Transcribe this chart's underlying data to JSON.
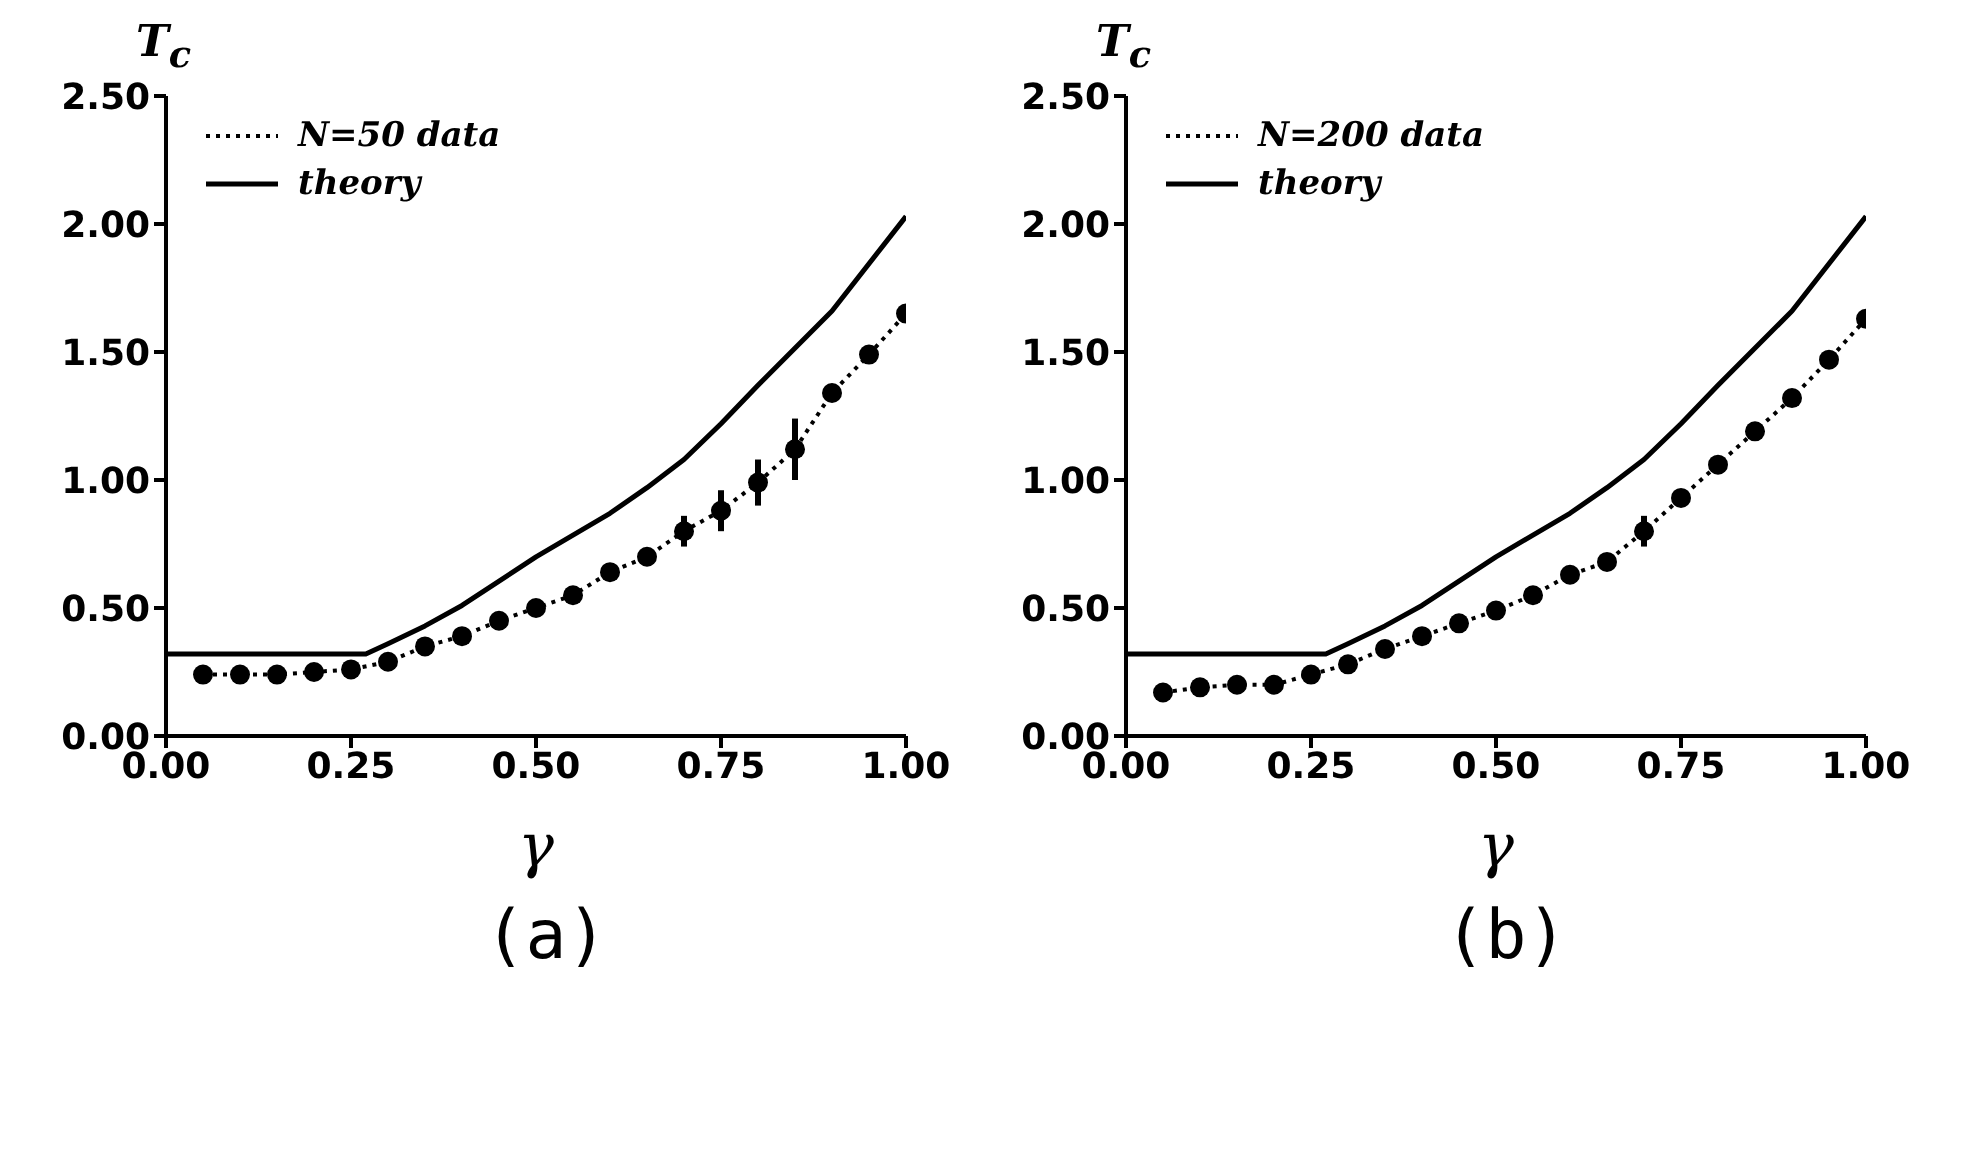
{
  "chart_data": [
    {
      "type": "line",
      "xlabel": "γ",
      "ylabel": "T$_{c}$",
      "annotations": [
        "(a)"
      ],
      "legend": "top left",
      "xlim": [
        0,
        1
      ],
      "ylim": [
        0,
        2.5
      ],
      "xticks": [
        {
          "value": 0,
          "label": "0.00"
        },
        {
          "value": 0.25,
          "label": "0.25"
        },
        {
          "value": 0.5,
          "label": "0.50"
        },
        {
          "value": 0.75,
          "label": "0.75"
        },
        {
          "value": 1,
          "label": "1.00"
        }
      ],
      "yticks": [
        {
          "value": 0,
          "label": "0.00"
        },
        {
          "value": 0.5,
          "label": "0.50"
        },
        {
          "value": 1,
          "label": "1.00"
        },
        {
          "value": 1.5,
          "label": "1.50"
        },
        {
          "value": 2,
          "label": "2.00"
        },
        {
          "value": 2.5,
          "label": "2.50"
        }
      ],
      "series": [
        {
          "name": "N=50 data",
          "color": "#000000",
          "marker": "circle",
          "line_style": "dotted",
          "x": [
            0.05,
            0.1,
            0.15,
            0.2,
            0.25,
            0.3,
            0.35,
            0.4,
            0.45,
            0.5,
            0.55,
            0.6,
            0.65,
            0.7,
            0.75,
            0.8,
            0.85,
            0.9,
            0.95,
            1.0
          ],
          "values": [
            0.24,
            0.24,
            0.24,
            0.25,
            0.26,
            0.29,
            0.35,
            0.39,
            0.45,
            0.5,
            0.55,
            0.64,
            0.7,
            0.8,
            0.88,
            0.99,
            1.12,
            1.34,
            1.49,
            1.65
          ],
          "errors": [
            null,
            null,
            null,
            null,
            null,
            null,
            null,
            null,
            null,
            null,
            null,
            null,
            null,
            0.06,
            0.08,
            0.09,
            0.12,
            null,
            null,
            null
          ]
        },
        {
          "name": "theory",
          "color": "#000000",
          "marker": "none",
          "line_style": "solid",
          "x": [
            0,
            0.27,
            0.3,
            0.35,
            0.4,
            0.5,
            0.6,
            0.65,
            0.7,
            0.75,
            0.8,
            0.9,
            1.0
          ],
          "values": [
            0.32,
            0.32,
            0.36,
            0.43,
            0.51,
            0.7,
            0.87,
            0.97,
            1.08,
            1.22,
            1.37,
            1.66,
            2.03
          ]
        }
      ]
    },
    {
      "type": "line",
      "xlabel": "γ",
      "ylabel": "T$_{c}$",
      "annotations": [
        "(b)"
      ],
      "legend": "top left",
      "xlim": [
        0,
        1
      ],
      "ylim": [
        0,
        2.5
      ],
      "xticks": [
        {
          "value": 0,
          "label": "0.00"
        },
        {
          "value": 0.25,
          "label": "0.25"
        },
        {
          "value": 0.5,
          "label": "0.50"
        },
        {
          "value": 0.75,
          "label": "0.75"
        },
        {
          "value": 1,
          "label": "1.00"
        }
      ],
      "yticks": [
        {
          "value": 0,
          "label": "0.00"
        },
        {
          "value": 0.5,
          "label": "0.50"
        },
        {
          "value": 1,
          "label": "1.00"
        },
        {
          "value": 1.5,
          "label": "1.50"
        },
        {
          "value": 2,
          "label": "2.00"
        },
        {
          "value": 2.5,
          "label": "2.50"
        }
      ],
      "series": [
        {
          "name": "N=200 data",
          "color": "#000000",
          "marker": "circle",
          "line_style": "dotted",
          "x": [
            0.05,
            0.1,
            0.15,
            0.2,
            0.25,
            0.3,
            0.35,
            0.4,
            0.45,
            0.5,
            0.55,
            0.6,
            0.65,
            0.7,
            0.75,
            0.8,
            0.85,
            0.9,
            0.95,
            1.0
          ],
          "values": [
            0.17,
            0.19,
            0.2,
            0.2,
            0.24,
            0.28,
            0.34,
            0.39,
            0.44,
            0.49,
            0.55,
            0.63,
            0.68,
            0.8,
            0.93,
            1.06,
            1.19,
            1.32,
            1.47,
            1.63
          ],
          "errors": [
            null,
            null,
            null,
            null,
            null,
            null,
            null,
            null,
            null,
            null,
            null,
            null,
            null,
            0.06,
            null,
            null,
            null,
            null,
            null,
            null
          ]
        },
        {
          "name": "theory",
          "color": "#000000",
          "marker": "none",
          "line_style": "solid",
          "x": [
            0,
            0.27,
            0.3,
            0.35,
            0.4,
            0.5,
            0.6,
            0.65,
            0.7,
            0.75,
            0.8,
            0.9,
            1.0
          ],
          "values": [
            0.32,
            0.32,
            0.36,
            0.43,
            0.51,
            0.7,
            0.87,
            0.97,
            1.08,
            1.22,
            1.37,
            1.66,
            2.03
          ]
        }
      ]
    }
  ]
}
